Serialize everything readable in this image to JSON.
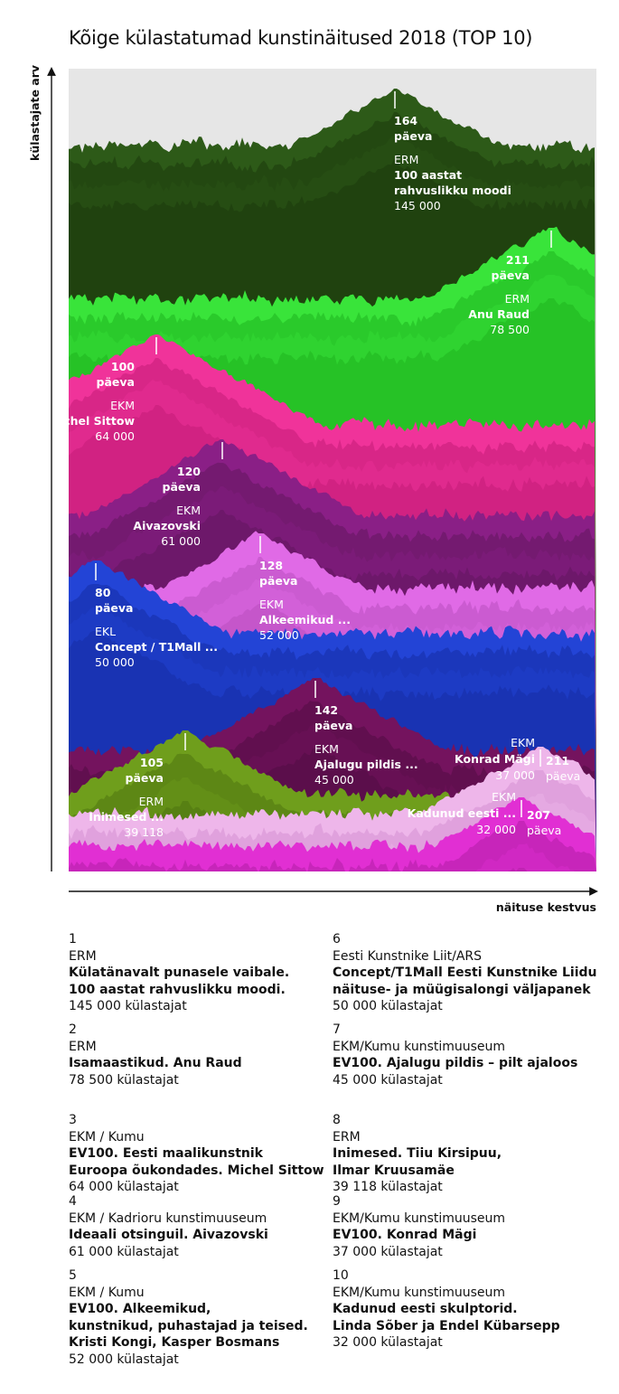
{
  "title": "Kõige külastatumad kunstinäitused 2018 (TOP 10)",
  "colors": {
    "background": "#e6e6e6",
    "axis": "#111111"
  },
  "chart_data": {
    "type": "area",
    "xlabel": "näituse kestvus",
    "ylabel": "külastajate arv",
    "grid": false,
    "series": [
      {
        "rank": 1,
        "org": "ERM",
        "short": "100 aastat\nrahvuslikku moodi",
        "days": "164",
        "unit": "päeva",
        "visitors_label": "145 000",
        "visitors": 145000,
        "color": "#2d5a18",
        "dark": "#1b3a0c"
      },
      {
        "rank": 2,
        "org": "ERM",
        "short": "Anu Raud",
        "days": "211",
        "unit": "päeva",
        "visitors_label": "78 500",
        "visitors": 78500,
        "color": "#39e43a",
        "dark": "#1fb51f"
      },
      {
        "rank": 3,
        "org": "EKM",
        "short": "Michel Sittow",
        "days": "100",
        "unit": "päeva",
        "visitors_label": "64 000",
        "visitors": 64000,
        "color": "#f0339a",
        "dark": "#c41b78"
      },
      {
        "rank": 4,
        "org": "EKM",
        "short": "Aivazovski",
        "days": "120",
        "unit": "päeva",
        "visitors_label": "61 000",
        "visitors": 61000,
        "color": "#8a1f86",
        "dark": "#63155f"
      },
      {
        "rank": 5,
        "org": "EKM",
        "short": "Alkeemikud ...",
        "days": "128",
        "unit": "päeva",
        "visitors_label": "52 000",
        "visitors": 52000,
        "color": "#e06ae6",
        "dark": "#b94ec0"
      },
      {
        "rank": 6,
        "org": "EKL",
        "short": "Concept / T1Mall ...",
        "days": "80",
        "unit": "päeva",
        "visitors_label": "50 000",
        "visitors": 50000,
        "color": "#2344d6",
        "dark": "#162ea5"
      },
      {
        "rank": 7,
        "org": "EKM",
        "short": "Ajalugu pildis ...",
        "days": "142",
        "unit": "päeva",
        "visitors_label": "45 000",
        "visitors": 45000,
        "color": "#74135e",
        "dark": "#520d43"
      },
      {
        "rank": 8,
        "org": "ERM",
        "short": "Inimesed ...",
        "days": "105",
        "unit": "päeva",
        "visitors_label": "39 118",
        "visitors": 39118,
        "color": "#6f9e1c",
        "dark": "#4f7510"
      },
      {
        "rank": 9,
        "org": "EKM",
        "short": "Konrad Mägi",
        "days": "211",
        "unit": "päeva",
        "visitors_label": "37 000",
        "visitors": 37000,
        "color": "#eeb6ea",
        "dark": "#d58fd1"
      },
      {
        "rank": 10,
        "org": "EKM",
        "short": "Kadunud eesti ...",
        "days": "207",
        "unit": "päeva",
        "visitors_label": "32 000",
        "visitors": 32000,
        "color": "#e12fd3",
        "dark": "#b31ea6"
      }
    ]
  },
  "legend": [
    {
      "num": "1",
      "org": "ERM",
      "title": "Külatänavalt punasele vaibale.\n100 aastat rahvuslikku moodi.",
      "visitors": "145 000 külastajat"
    },
    {
      "num": "2",
      "org": "ERM",
      "title": "Isamaastikud. Anu Raud",
      "visitors": "78 500 külastajat"
    },
    {
      "num": "3",
      "org": "EKM / Kumu",
      "title": "EV100. Eesti maalikunstnik\nEuroopa õukondades. Michel Sittow",
      "visitors": "64 000 külastajat"
    },
    {
      "num": "4",
      "org": "EKM / Kadrioru kunstimuuseum",
      "title": "Ideaali otsinguil. Aivazovski",
      "visitors": "61 000 külastajat"
    },
    {
      "num": "5",
      "org": "EKM / Kumu",
      "title": "EV100. Alkeemikud,\nkunstnikud, puhastajad ja teised.\nKristi Kongi, Kasper Bosmans",
      "visitors": "52 000 külastajat"
    },
    {
      "num": "6",
      "org": "Eesti Kunstnike Liit/ARS",
      "title": "Concept/T1Mall Eesti Kunstnike Liidu\nnäituse- ja müügisalongi väljapanek",
      "visitors": "50 000 külastajat"
    },
    {
      "num": "7",
      "org": "EKM/Kumu kunstimuuseum",
      "title": "EV100. Ajalugu pildis – pilt ajaloos",
      "visitors": "45 000 külastajat"
    },
    {
      "num": "8",
      "org": "ERM",
      "title": "Inimesed. Tiiu Kirsipuu,\nIlmar Kruusamäe",
      "visitors": "39 118 külastajat"
    },
    {
      "num": "9",
      "org": "EKM/Kumu kunstimuuseum",
      "title": "EV100. Konrad Mägi",
      "visitors": "37 000 külastajat"
    },
    {
      "num": "10",
      "org": "EKM/Kumu kunstimuuseum",
      "title": "Kadunud eesti skulptorid.\nLinda Sõber ja Endel Kübarsepp",
      "visitors": "32 000 külastajat"
    }
  ]
}
